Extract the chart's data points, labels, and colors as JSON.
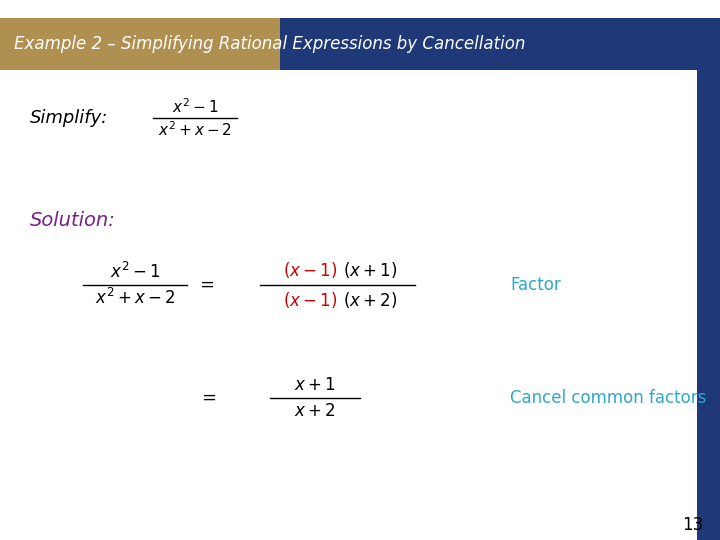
{
  "title": "Example 2 – Simplifying Rational Expressions by Cancellation",
  "title_bg_gold": "#B09050",
  "title_bg_blue": "#1F3878",
  "title_text_color": "#FFFFFF",
  "slide_bg": "#FFFFFF",
  "right_bar_color": "#1F3878",
  "simplify_label": "Simplify:",
  "solution_label": "Solution:",
  "solution_color": "#7B1F8A",
  "factor_label": "Factor",
  "factor_color": "#2FA8C8",
  "cancel_label": "Cancel common factors",
  "cancel_color": "#2FA8C8",
  "red_color": "#CC0000",
  "black_color": "#000000",
  "page_number": "13",
  "page_number_color": "#000000"
}
